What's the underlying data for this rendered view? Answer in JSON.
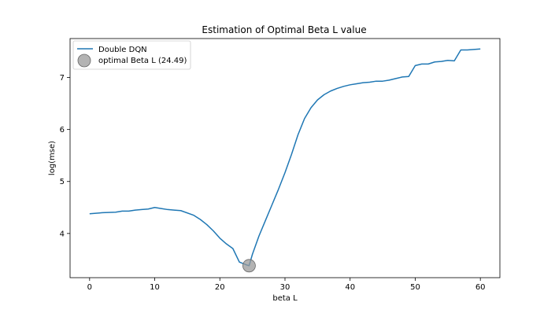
{
  "chart_data": {
    "type": "line",
    "title": "Estimation of Optimal Beta L value",
    "xlabel": "beta L",
    "ylabel": "log(mse)",
    "xlim": [
      -3,
      63
    ],
    "ylim": [
      3.15,
      7.75
    ],
    "xticks": [
      0,
      10,
      20,
      30,
      40,
      50,
      60
    ],
    "yticks": [
      4,
      5,
      6,
      7
    ],
    "grid": false,
    "legend_position": "upper-left",
    "series": [
      {
        "name": "Double DQN",
        "color": "#1f77b4",
        "x": [
          0,
          2,
          4,
          5,
          6,
          7,
          8,
          9,
          10,
          11,
          12,
          13,
          14,
          16,
          17,
          18,
          19,
          20,
          21,
          22,
          23,
          24,
          24.49,
          25,
          26,
          27,
          28,
          29,
          30,
          31,
          32,
          33,
          34,
          35,
          36,
          37,
          38,
          39,
          40,
          41,
          42,
          43,
          44,
          45,
          46,
          47,
          48,
          49,
          50,
          51,
          52,
          53,
          54,
          55,
          56,
          57,
          58,
          59,
          60
        ],
        "y": [
          4.38,
          4.4,
          4.41,
          4.43,
          4.43,
          4.45,
          4.46,
          4.47,
          4.5,
          4.48,
          4.46,
          4.45,
          4.44,
          4.35,
          4.27,
          4.17,
          4.05,
          3.91,
          3.8,
          3.71,
          3.45,
          3.4,
          3.38,
          3.6,
          3.95,
          4.25,
          4.55,
          4.85,
          5.17,
          5.52,
          5.9,
          6.21,
          6.42,
          6.57,
          6.67,
          6.74,
          6.79,
          6.83,
          6.86,
          6.88,
          6.9,
          6.91,
          6.93,
          6.93,
          6.95,
          6.98,
          7.01,
          7.02,
          7.23,
          7.26,
          7.26,
          7.3,
          7.31,
          7.33,
          7.32,
          7.53,
          7.53,
          7.54,
          7.55
        ]
      }
    ],
    "marker": {
      "label": "optimal Beta L (24.49)",
      "x": 24.49,
      "y": 3.38,
      "color": "#999999"
    }
  }
}
